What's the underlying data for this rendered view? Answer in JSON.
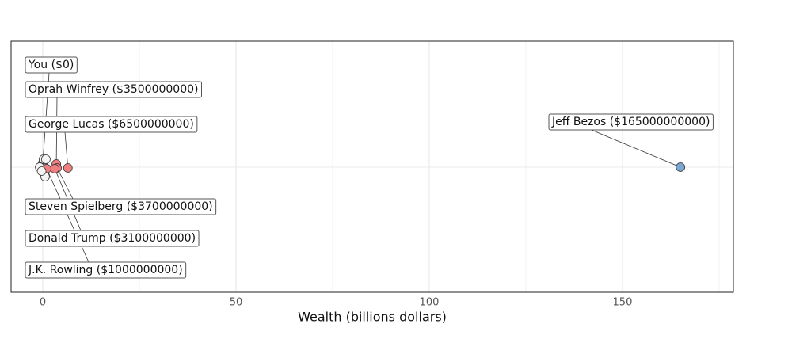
{
  "chart_data": {
    "type": "scatter",
    "xlabel": "Wealth (billions dollars)",
    "x": [
      0,
      3.5,
      6.5,
      3.7,
      3.1,
      1.0,
      165,
      0.2,
      0.8,
      -0.8,
      0.6,
      -0.3
    ],
    "labels": [
      "You ($0)",
      "Oprah Winfrey ($3500000000)",
      "George Lucas ($6500000000)",
      "Steven Spielberg ($3700000000)",
      "Donald Trump ($3100000000)",
      "J.K. Rowling ($1000000000)",
      "Jeff Bezos ($165000000000)",
      null,
      null,
      null,
      null,
      null
    ],
    "colors": [
      "#a9a9a9",
      "#f08080",
      "#f08080",
      "#f08080",
      "#f08080",
      "#f08080",
      "#7ba7d1",
      "#f4f4f4",
      "#f4f4f4",
      "#f4f4f4",
      "#f4f4f4",
      "#f4f4f4"
    ],
    "xlim": [
      -8.2,
      178.7
    ],
    "xticks": [
      0,
      50,
      100,
      150
    ],
    "minor_xticks": [
      25,
      75,
      125,
      175
    ],
    "grid": true
  }
}
